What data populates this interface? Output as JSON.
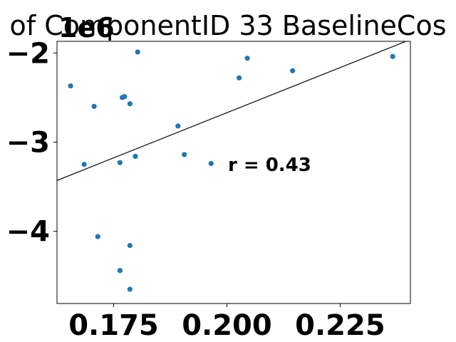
{
  "chart_data": {
    "type": "scatter",
    "title": "of ComponentID 33 BaselineCos",
    "y_offset_label": "1e6",
    "xlabel": "",
    "ylabel": "",
    "xlim": [
      0.1625,
      0.2405
    ],
    "ylim": [
      -4.81,
      -1.87
    ],
    "x_ticks": [
      0.175,
      0.2,
      0.225
    ],
    "x_tick_labels": [
      "0.175",
      "0.200",
      "0.225"
    ],
    "y_ticks": [
      -2,
      -3,
      -4
    ],
    "y_tick_labels": [
      "−2",
      "−3",
      "−4"
    ],
    "points": [
      {
        "x": 0.1655,
        "y": -2.37
      },
      {
        "x": 0.1685,
        "y": -3.25
      },
      {
        "x": 0.1707,
        "y": -2.6
      },
      {
        "x": 0.1715,
        "y": -4.06
      },
      {
        "x": 0.1764,
        "y": -3.23
      },
      {
        "x": 0.1764,
        "y": -4.44
      },
      {
        "x": 0.1769,
        "y": -2.5
      },
      {
        "x": 0.1774,
        "y": -2.49
      },
      {
        "x": 0.1786,
        "y": -2.57
      },
      {
        "x": 0.1786,
        "y": -4.16
      },
      {
        "x": 0.1786,
        "y": -4.65
      },
      {
        "x": 0.1798,
        "y": -3.16
      },
      {
        "x": 0.1803,
        "y": -1.99
      },
      {
        "x": 0.1892,
        "y": -2.82
      },
      {
        "x": 0.1906,
        "y": -3.14
      },
      {
        "x": 0.1965,
        "y": -3.24
      },
      {
        "x": 0.2027,
        "y": -2.28
      },
      {
        "x": 0.2045,
        "y": -2.06
      },
      {
        "x": 0.2145,
        "y": -2.2
      },
      {
        "x": 0.2366,
        "y": -2.04
      }
    ],
    "fit_line": {
      "x": [
        0.1625,
        0.2405
      ],
      "y": [
        -3.43,
        -1.85
      ]
    },
    "annotation": "r = 0.43",
    "grid": false,
    "colors": {
      "points": "#1f77b4",
      "line": "#000000"
    }
  }
}
